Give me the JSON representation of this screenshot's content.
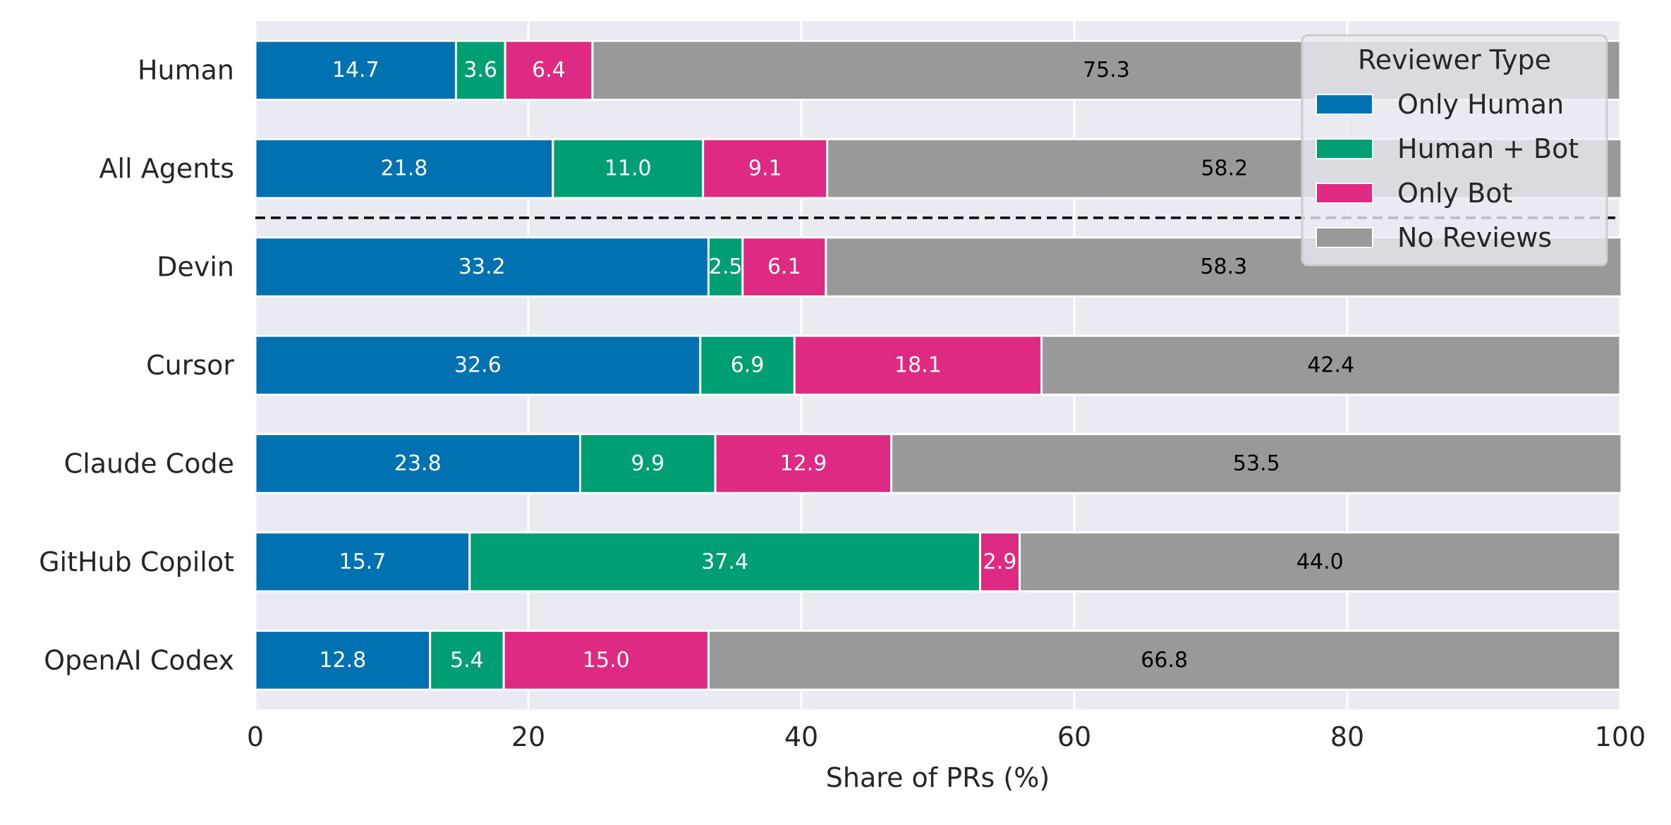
{
  "chart_data": {
    "type": "bar",
    "orientation": "horizontal",
    "stacked": true,
    "title": "",
    "xlabel": "Share of PRs (%)",
    "ylabel": "",
    "xlim": [
      0,
      100
    ],
    "x_ticks": [
      0,
      20,
      40,
      60,
      80,
      100
    ],
    "grid": true,
    "categories": [
      "Human",
      "All Agents",
      "Devin",
      "Cursor",
      "Claude Code",
      "GitHub Copilot",
      "OpenAI Codex"
    ],
    "separator_after_category": "All Agents",
    "legend": {
      "title": "Reviewer Type",
      "placement": "top-right"
    },
    "series": [
      {
        "name": "Only Human",
        "color": "#0072B2",
        "label_color": "#ffffff",
        "values": [
          14.7,
          21.8,
          33.2,
          32.6,
          23.8,
          15.7,
          12.8
        ]
      },
      {
        "name": "Human + Bot",
        "color": "#009E73",
        "label_color": "#ffffff",
        "values": [
          3.6,
          11.0,
          2.5,
          6.9,
          9.9,
          37.4,
          5.4
        ]
      },
      {
        "name": "Only Bot",
        "color": "#DE2A82",
        "label_color": "#ffffff",
        "values": [
          6.4,
          9.1,
          6.1,
          18.1,
          12.9,
          2.9,
          15.0
        ]
      },
      {
        "name": "No Reviews",
        "color": "#999999",
        "label_color": "#000000",
        "values": [
          75.3,
          58.2,
          58.3,
          42.4,
          53.5,
          44.0,
          66.8
        ]
      }
    ]
  }
}
